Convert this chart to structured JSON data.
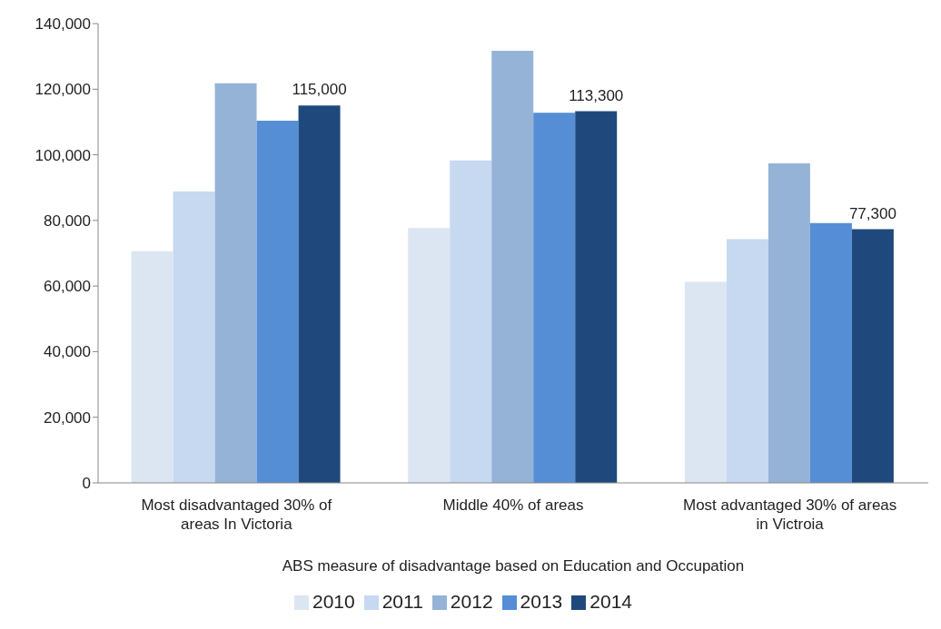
{
  "chart_data": {
    "type": "bar",
    "xlabel": "ABS measure of disadvantage based on Education and Occupation",
    "categories": [
      "Most disadvantaged 30% of areas In Victoria",
      "Middle 40% of areas",
      "Most advantaged 30% of areas in Victroia"
    ],
    "series": [
      {
        "name": "2010",
        "color": "#dce6f2",
        "values": [
          70600,
          77700,
          61300
        ]
      },
      {
        "name": "2011",
        "color": "#c6d9f1",
        "values": [
          88800,
          98300,
          74300
        ]
      },
      {
        "name": "2012",
        "color": "#95b3d7",
        "values": [
          121800,
          131700,
          97400
        ]
      },
      {
        "name": "2013",
        "color": "#558ed5",
        "values": [
          110400,
          112800,
          79200
        ]
      },
      {
        "name": "2014",
        "color": "#1f497d",
        "values": [
          115000,
          113300,
          77300
        ],
        "value_labels": [
          "115,000",
          "113,300",
          "77,300"
        ]
      }
    ],
    "ylim": [
      0,
      140000
    ],
    "yticks": [
      0,
      {
        "value": 20000,
        "label": "20,000"
      },
      {
        "value": 40000,
        "label": "40,000"
      },
      {
        "value": 60000,
        "label": "60,000"
      },
      {
        "value": 80000,
        "label": "80,000"
      },
      {
        "value": 100000,
        "label": "100,000"
      },
      {
        "value": 120000,
        "label": "120,000"
      },
      {
        "value": 140000,
        "label": "140,000"
      }
    ],
    "grid": false,
    "legend": "bottom"
  }
}
